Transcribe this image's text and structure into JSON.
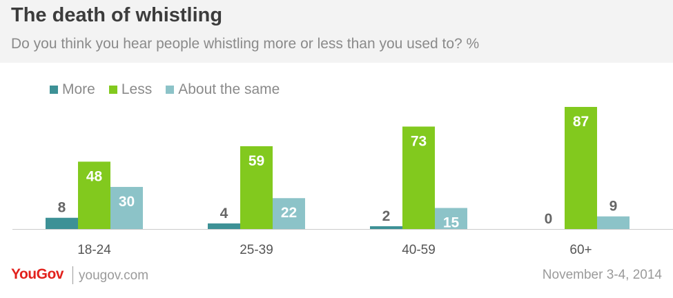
{
  "header": {
    "title": "The death of whistling",
    "subtitle": "Do you think you hear people whistling more or less than you used to? %"
  },
  "chart_data": {
    "type": "bar",
    "title": "The death of whistling",
    "subtitle": "Do you think you hear people whistling more or less than you used to? %",
    "categories": [
      "18-24",
      "25-39",
      "40-59",
      "60+"
    ],
    "series": [
      {
        "name": "More",
        "values": [
          8,
          4,
          2,
          0
        ],
        "color": "#3d9196",
        "label_color": "#666666"
      },
      {
        "name": "Less",
        "values": [
          48,
          59,
          73,
          87
        ],
        "color": "#82c91e",
        "label_color": "#ffffff"
      },
      {
        "name": "About the same",
        "values": [
          30,
          22,
          15,
          9
        ],
        "color": "#8cc3c8",
        "label_color": "#ffffff"
      }
    ],
    "ylim": [
      0,
      87
    ],
    "grid": false,
    "legend": "top-left",
    "data_labels": true
  },
  "footer": {
    "logo": "YouGov",
    "site": "yougov.com",
    "date": "November 3-4, 2014"
  },
  "colors": {
    "header_bg": "#f3f3f3",
    "title": "#3c3c3c",
    "muted_text": "#8a8a8a",
    "brand": "#e2211c",
    "baseline": "#cccccc"
  }
}
